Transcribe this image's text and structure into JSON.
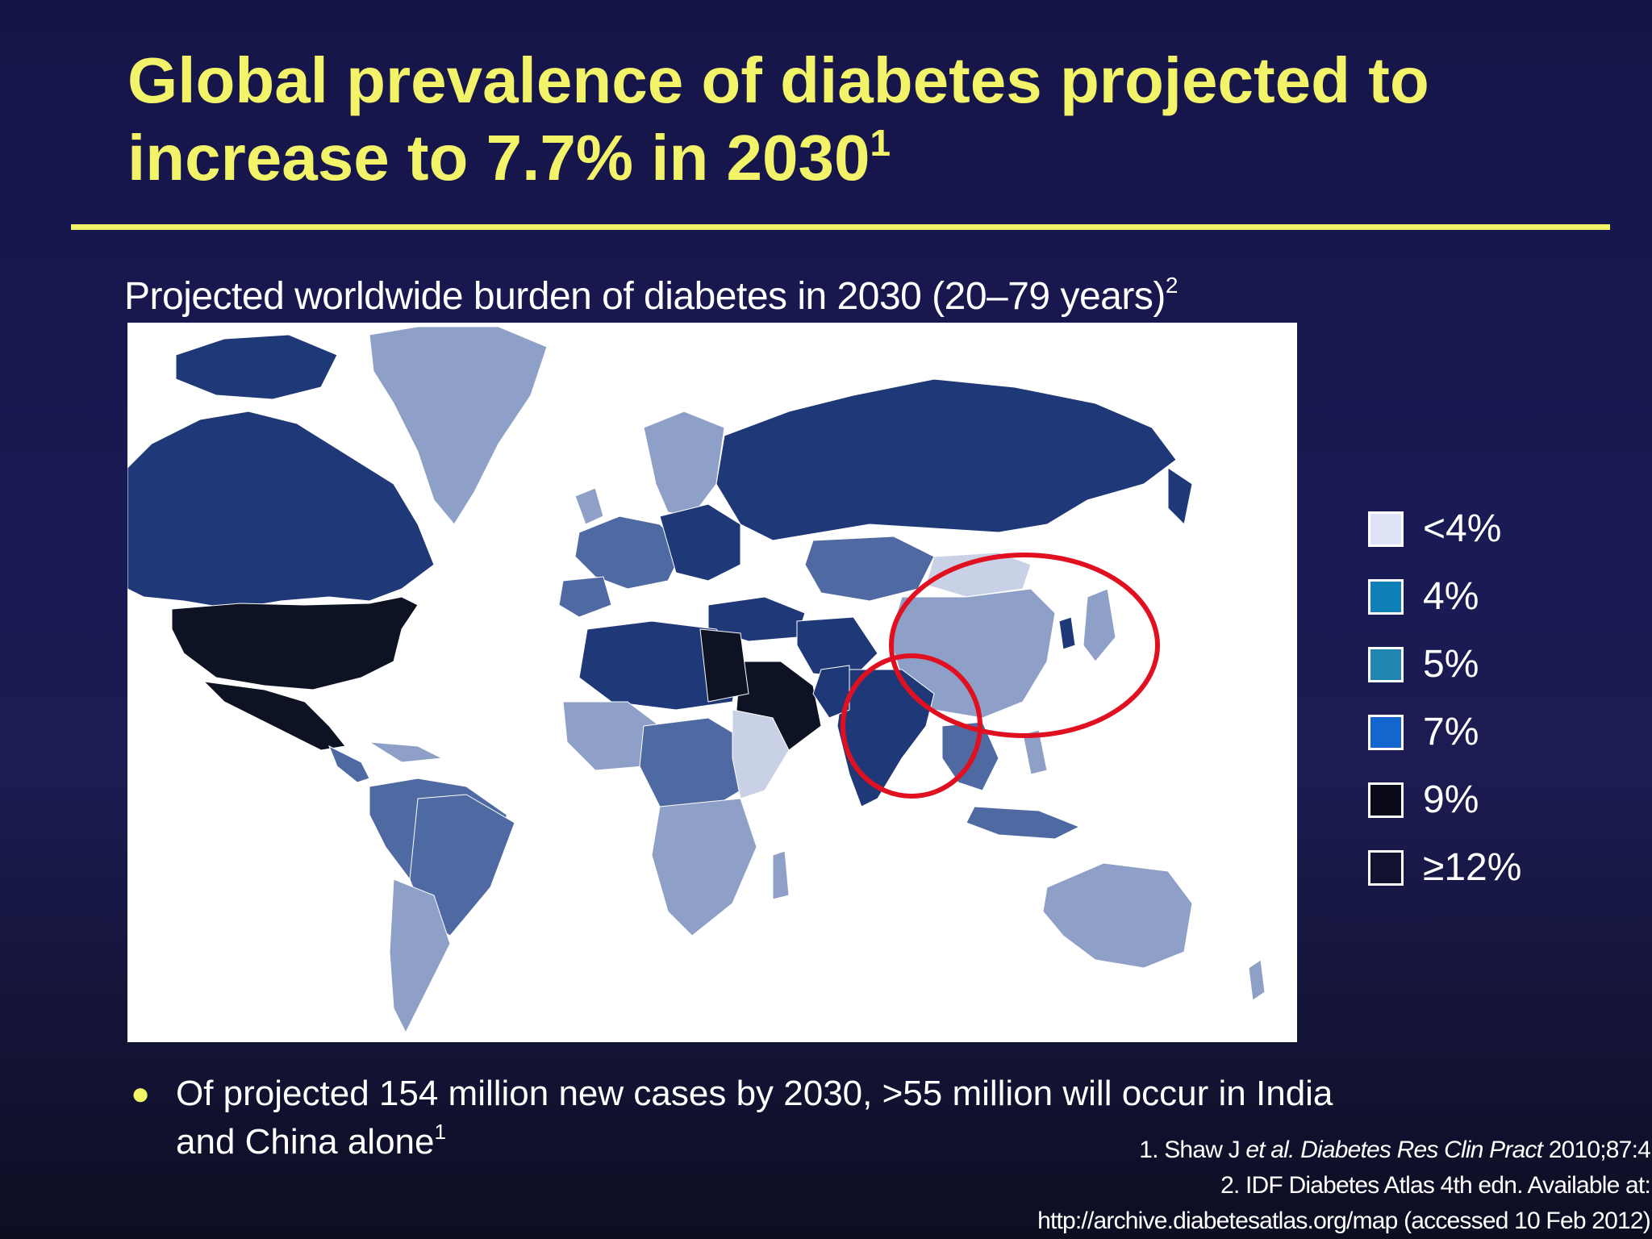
{
  "slide": {
    "title_main": "Global prevalence of diabetes projected to increase to 7.7% in 2030",
    "title_footnote": "1",
    "subtitle_main": "Projected worldwide burden of diabetes in 2030 (20–79 years)",
    "subtitle_footnote": "2",
    "bullet_main": "Of projected 154 million new cases by 2030, >55 million will occur in India and China alone",
    "bullet_footnote": "1"
  },
  "legend": [
    {
      "label": "<4%",
      "color": "#dde2f4"
    },
    {
      "label": "4%",
      "color": "#0f7fb8"
    },
    {
      "label": "5%",
      "color": "#1f86b2"
    },
    {
      "label": "7%",
      "color": "#1466cf"
    },
    {
      "label": "9%",
      "color": "#0a0a18"
    },
    {
      "label": "≥12%",
      "color": "#121230"
    }
  ],
  "references": {
    "ref1_prefix": "1. Shaw J ",
    "ref1_etal": "et al.",
    "ref1_journal": " Diabetes Res Clin Pract",
    "ref1_suffix": " 2010;87:4",
    "ref2_line1": "2. IDF Diabetes Atlas 4th edn. Available at:",
    "ref2_line2": "http://archive.diabetesatlas.org/map (accessed 10 Feb 2012)"
  },
  "map_colors": {
    "ocean": "#ffffff",
    "dark_navy": "#1f3878",
    "mid_blue": "#4f6aa2",
    "light_blue": "#8ea0c8",
    "very_light": "#c8d1e6",
    "black": "#0d1322",
    "highlight_circle": "#e01020"
  }
}
